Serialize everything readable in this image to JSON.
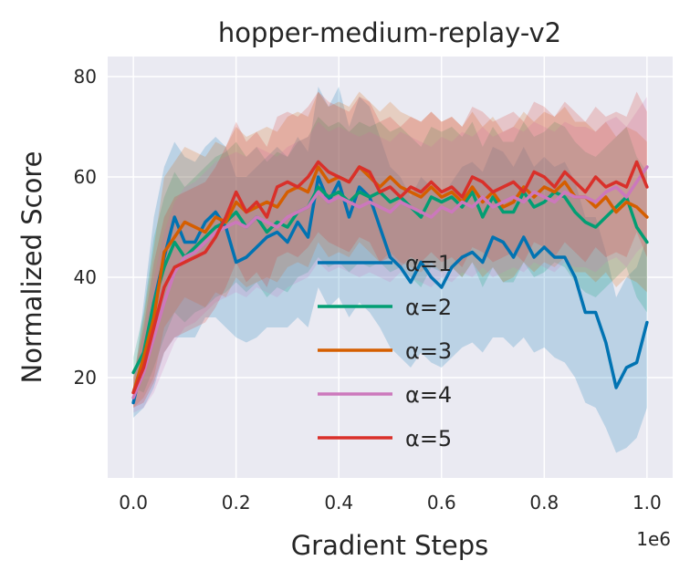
{
  "chart_data": {
    "type": "line",
    "title": "hopper-medium-replay-v2",
    "xlabel": "Gradient Steps",
    "ylabel": "Normalized Score",
    "x_multiplier": "1e6",
    "xlim": [
      -0.05,
      1.05
    ],
    "ylim": [
      0,
      84
    ],
    "x_ticks": [
      0.0,
      0.2,
      0.4,
      0.6,
      0.8,
      1.0
    ],
    "x_tick_labels": [
      "0.0",
      "0.2",
      "0.4",
      "0.6",
      "0.8",
      "1.0"
    ],
    "y_ticks": [
      20,
      40,
      60,
      80
    ],
    "y_tick_labels": [
      "20",
      "40",
      "60",
      "80"
    ],
    "grid": true,
    "background": "#EAEAF2",
    "legend_position": "center",
    "x": [
      0.0,
      0.02,
      0.04,
      0.06,
      0.08,
      0.1,
      0.12,
      0.14,
      0.16,
      0.18,
      0.2,
      0.22,
      0.24,
      0.26,
      0.28,
      0.3,
      0.32,
      0.34,
      0.36,
      0.38,
      0.4,
      0.42,
      0.44,
      0.46,
      0.48,
      0.5,
      0.52,
      0.54,
      0.56,
      0.58,
      0.6,
      0.62,
      0.64,
      0.66,
      0.68,
      0.7,
      0.72,
      0.74,
      0.76,
      0.78,
      0.8,
      0.82,
      0.84,
      0.86,
      0.88,
      0.9,
      0.92,
      0.94,
      0.96,
      0.98,
      1.0
    ],
    "series": [
      {
        "name": "α=1",
        "color": "#0173B2",
        "values": [
          15,
          24,
          35,
          44,
          52,
          47,
          47,
          51,
          53,
          50,
          43,
          44,
          46,
          48,
          49,
          47,
          51,
          48,
          60,
          55,
          59,
          52,
          58,
          56,
          50,
          44,
          42,
          39,
          43,
          40,
          38,
          42,
          44,
          45,
          43,
          48,
          47,
          44,
          48,
          44,
          46,
          44,
          44,
          40,
          33,
          33,
          27,
          18,
          22,
          23,
          31
        ],
        "lower": [
          12,
          14,
          18,
          25,
          28,
          28,
          28,
          32,
          32,
          30,
          28,
          27,
          28,
          30,
          30,
          30,
          32,
          30,
          38,
          34,
          36,
          32,
          35,
          33,
          30,
          26,
          24,
          22,
          25,
          23,
          22,
          24,
          26,
          27,
          25,
          28,
          28,
          26,
          28,
          25,
          26,
          24,
          23,
          20,
          15,
          14,
          10,
          5,
          6,
          8,
          14
        ],
        "upper": [
          18,
          35,
          52,
          62,
          67,
          64,
          63,
          66,
          68,
          66,
          60,
          60,
          62,
          64,
          66,
          64,
          68,
          65,
          78,
          74,
          78,
          70,
          76,
          74,
          68,
          62,
          60,
          56,
          60,
          58,
          56,
          59,
          62,
          63,
          61,
          66,
          65,
          62,
          66,
          62,
          64,
          62,
          63,
          59,
          52,
          52,
          45,
          36,
          40,
          42,
          48
        ]
      },
      {
        "name": "α=2",
        "color": "#029E73",
        "values": [
          21,
          25,
          35,
          42,
          47,
          44,
          46,
          48,
          50,
          51,
          53,
          50,
          52,
          49,
          51,
          50,
          53,
          54,
          58,
          56,
          57,
          55,
          57,
          56,
          57,
          55,
          56,
          54,
          52,
          56,
          55,
          56,
          54,
          57,
          52,
          56,
          53,
          53,
          57,
          54,
          55,
          57,
          56,
          53,
          51,
          50,
          52,
          54,
          56,
          50,
          47
        ],
        "lower": [
          18,
          17,
          22,
          28,
          33,
          31,
          33,
          34,
          36,
          37,
          39,
          37,
          39,
          36,
          38,
          37,
          40,
          41,
          44,
          42,
          43,
          41,
          43,
          42,
          43,
          41,
          42,
          40,
          38,
          42,
          41,
          42,
          40,
          43,
          38,
          42,
          39,
          39,
          43,
          40,
          41,
          43,
          42,
          39,
          37,
          36,
          38,
          40,
          42,
          36,
          33
        ],
        "upper": [
          24,
          33,
          48,
          56,
          61,
          58,
          60,
          62,
          64,
          65,
          67,
          64,
          66,
          63,
          65,
          64,
          67,
          68,
          72,
          70,
          71,
          69,
          71,
          70,
          71,
          69,
          70,
          68,
          66,
          70,
          69,
          70,
          68,
          71,
          66,
          70,
          67,
          67,
          71,
          68,
          69,
          71,
          70,
          67,
          65,
          64,
          66,
          68,
          70,
          64,
          61
        ]
      },
      {
        "name": "α=3",
        "color": "#D55E00",
        "values": [
          17,
          24,
          32,
          45,
          48,
          51,
          50,
          49,
          52,
          51,
          55,
          53,
          54,
          55,
          54,
          57,
          58,
          57,
          62,
          59,
          60,
          59,
          62,
          60,
          58,
          60,
          58,
          57,
          56,
          58,
          56,
          57,
          55,
          58,
          55,
          57,
          54,
          55,
          58,
          56,
          58,
          57,
          59,
          56,
          56,
          54,
          56,
          53,
          55,
          54,
          52
        ],
        "lower": [
          14,
          16,
          20,
          30,
          33,
          36,
          35,
          34,
          37,
          36,
          40,
          38,
          39,
          40,
          39,
          42,
          43,
          42,
          47,
          44,
          45,
          44,
          47,
          45,
          43,
          45,
          43,
          42,
          41,
          43,
          41,
          42,
          40,
          43,
          40,
          42,
          39,
          40,
          43,
          41,
          43,
          42,
          44,
          41,
          41,
          39,
          41,
          38,
          40,
          39,
          37
        ],
        "upper": [
          20,
          32,
          46,
          60,
          63,
          66,
          65,
          64,
          67,
          66,
          70,
          68,
          69,
          70,
          69,
          72,
          73,
          72,
          77,
          74,
          75,
          74,
          77,
          75,
          73,
          75,
          73,
          72,
          71,
          73,
          71,
          72,
          70,
          73,
          70,
          72,
          69,
          70,
          73,
          71,
          73,
          72,
          74,
          71,
          71,
          69,
          71,
          68,
          70,
          69,
          67
        ]
      },
      {
        "name": "α=4",
        "color": "#CC78BC",
        "values": [
          16,
          21,
          28,
          35,
          41,
          44,
          45,
          47,
          49,
          50,
          51,
          50,
          52,
          51,
          50,
          52,
          53,
          54,
          57,
          55,
          56,
          55,
          54,
          55,
          54,
          53,
          55,
          54,
          53,
          52,
          54,
          53,
          55,
          54,
          56,
          54,
          55,
          56,
          55,
          57,
          56,
          55,
          57,
          56,
          56,
          55,
          57,
          58,
          56,
          59,
          62
        ],
        "lower": [
          13,
          14,
          17,
          22,
          27,
          30,
          31,
          33,
          35,
          36,
          37,
          36,
          38,
          37,
          36,
          38,
          39,
          40,
          43,
          41,
          42,
          41,
          40,
          41,
          40,
          39,
          41,
          40,
          39,
          38,
          40,
          39,
          41,
          40,
          42,
          40,
          41,
          42,
          41,
          43,
          42,
          41,
          43,
          42,
          42,
          41,
          43,
          44,
          42,
          45,
          47
        ],
        "upper": [
          19,
          29,
          40,
          49,
          55,
          58,
          59,
          61,
          63,
          64,
          65,
          64,
          66,
          65,
          64,
          66,
          67,
          68,
          71,
          69,
          70,
          69,
          68,
          69,
          68,
          67,
          69,
          68,
          67,
          66,
          68,
          67,
          69,
          68,
          70,
          68,
          69,
          70,
          69,
          71,
          70,
          69,
          71,
          70,
          70,
          69,
          71,
          72,
          70,
          73,
          76
        ]
      },
      {
        "name": "α=5",
        "color": "#D9302A",
        "values": [
          17,
          22,
          30,
          38,
          42,
          43,
          44,
          45,
          48,
          52,
          57,
          53,
          55,
          52,
          58,
          59,
          58,
          60,
          63,
          61,
          60,
          59,
          62,
          61,
          57,
          58,
          56,
          58,
          57,
          59,
          57,
          58,
          56,
          60,
          59,
          57,
          58,
          59,
          57,
          61,
          60,
          58,
          61,
          59,
          57,
          60,
          58,
          59,
          58,
          63,
          58
        ],
        "lower": [
          14,
          15,
          19,
          25,
          28,
          29,
          30,
          31,
          34,
          38,
          43,
          39,
          41,
          38,
          44,
          45,
          44,
          46,
          49,
          47,
          46,
          45,
          48,
          47,
          43,
          44,
          42,
          44,
          43,
          45,
          43,
          44,
          42,
          46,
          45,
          43,
          44,
          45,
          43,
          47,
          46,
          44,
          47,
          45,
          43,
          46,
          44,
          45,
          44,
          49,
          44
        ],
        "upper": [
          20,
          30,
          43,
          52,
          56,
          57,
          58,
          59,
          62,
          66,
          71,
          67,
          69,
          66,
          72,
          73,
          72,
          74,
          77,
          75,
          74,
          73,
          76,
          75,
          71,
          72,
          70,
          72,
          71,
          73,
          71,
          72,
          70,
          74,
          73,
          71,
          72,
          73,
          71,
          75,
          74,
          72,
          75,
          73,
          71,
          74,
          72,
          73,
          72,
          77,
          73
        ]
      }
    ]
  }
}
